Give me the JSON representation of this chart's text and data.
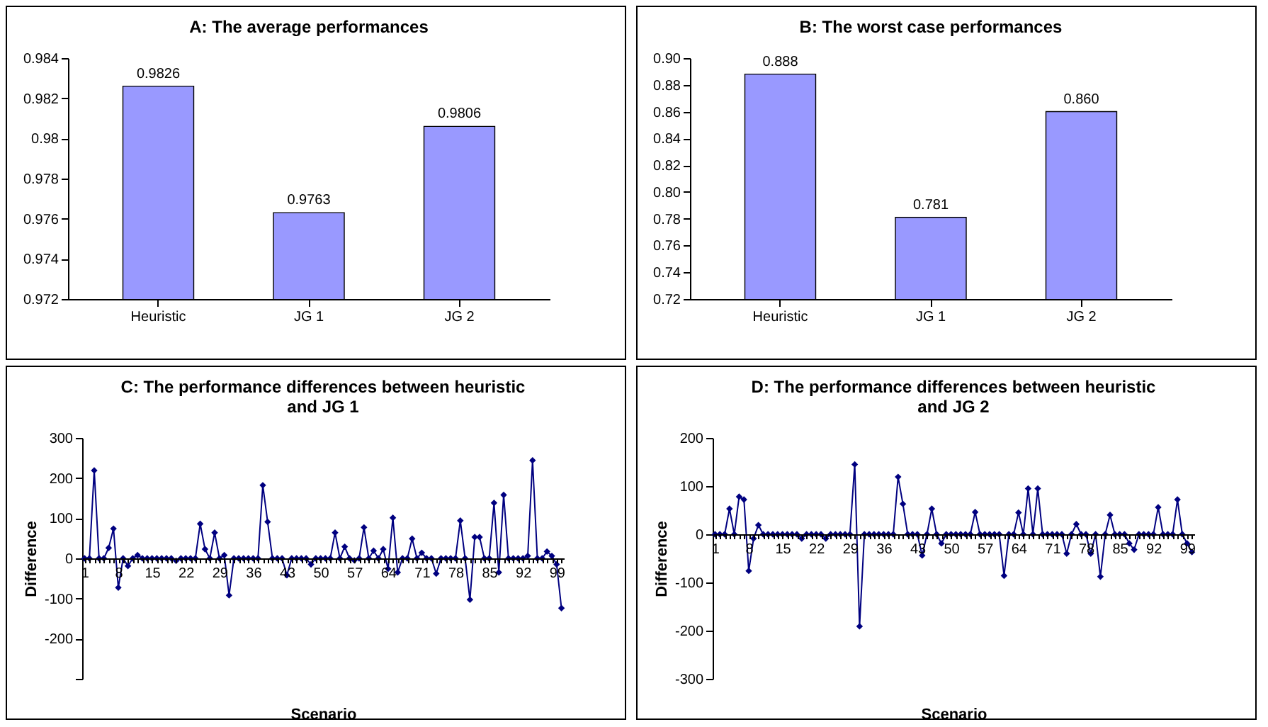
{
  "chart_data": [
    {
      "type": "bar",
      "title": "A: The average performances",
      "categories": [
        "Heuristic",
        "JG 1",
        "JG 2"
      ],
      "values": [
        0.9826,
        0.9763,
        0.9806
      ],
      "color": "#9999ff",
      "ylim": [
        0.972,
        0.984
      ],
      "yticks": [
        0.972,
        0.974,
        0.976,
        0.978,
        0.98,
        0.982,
        0.984
      ],
      "data_labels": true,
      "grid": false
    },
    {
      "type": "bar",
      "title": "B: The worst case performances",
      "categories": [
        "Heuristic",
        "JG 1",
        "JG 2"
      ],
      "values": [
        0.888,
        0.781,
        0.86
      ],
      "value_labels": [
        "0.888",
        "0.781",
        "0.860"
      ],
      "color": "#9999ff",
      "ylim": [
        0.72,
        0.9
      ],
      "yticks": [
        0.72,
        0.74,
        0.76,
        0.78,
        {
          "value": 0.8,
          "label": "0.80"
        },
        0.82,
        0.84,
        0.86,
        0.88,
        {
          "value": 0.9,
          "label": "0.90"
        }
      ],
      "grid": false
    },
    {
      "type": "line",
      "title": "C: The performance differences between heuristic and JG 1",
      "xlabel": "Scenario",
      "ylabel": "Difference",
      "marker": "diamond",
      "grid": false,
      "ylim": [
        -300,
        300
      ],
      "yticks": [
        {
          "value": -300,
          "label": null
        },
        -200,
        -100,
        0,
        100,
        200,
        300
      ],
      "categories": [
        "1",
        null,
        null,
        null,
        null,
        null,
        null,
        "8",
        null,
        null,
        null,
        null,
        null,
        null,
        "15",
        null,
        null,
        null,
        null,
        null,
        null,
        "22",
        null,
        null,
        null,
        null,
        null,
        null,
        "29",
        null,
        null,
        null,
        null,
        null,
        null,
        "36",
        null,
        null,
        null,
        null,
        null,
        null,
        "43",
        null,
        null,
        null,
        null,
        null,
        null,
        "50",
        null,
        null,
        null,
        null,
        null,
        null,
        "57",
        null,
        null,
        null,
        null,
        null,
        null,
        "64",
        null,
        null,
        null,
        null,
        null,
        null,
        "71",
        null,
        null,
        null,
        null,
        null,
        null,
        "78",
        null,
        null,
        null,
        null,
        null,
        null,
        "85",
        null,
        null,
        null,
        null,
        null,
        null,
        "92",
        null,
        null,
        null,
        null,
        null,
        null,
        "99",
        null
      ],
      "series": [
        {
          "color": "#000080",
          "values": [
            0,
            0,
            219,
            0,
            0,
            26,
            74,
            -73,
            0,
            -19,
            0,
            8,
            0,
            0,
            0,
            0,
            0,
            0,
            0,
            -6,
            0,
            0,
            0,
            0,
            86,
            23,
            0,
            64,
            0,
            8,
            -92,
            0,
            0,
            0,
            0,
            0,
            0,
            182,
            91,
            0,
            0,
            0,
            -42,
            0,
            0,
            0,
            0,
            -15,
            0,
            0,
            0,
            0,
            64,
            0,
            29,
            0,
            -5,
            0,
            77,
            0,
            19,
            0,
            23,
            -26,
            101,
            -35,
            0,
            0,
            49,
            0,
            14,
            0,
            0,
            -38,
            0,
            0,
            0,
            0,
            94,
            0,
            -103,
            53,
            53,
            0,
            0,
            138,
            -35,
            158,
            0,
            0,
            0,
            0,
            6,
            244,
            0,
            0,
            17,
            6,
            -15,
            -124
          ]
        }
      ]
    },
    {
      "type": "line",
      "title": "D: The performance differences between heuristic and JG 2",
      "xlabel": "Scenario",
      "ylabel": "Difference",
      "marker": "diamond",
      "grid": false,
      "ylim": [
        -300,
        200
      ],
      "yticks": [
        -300,
        -200,
        -100,
        0,
        100,
        200
      ],
      "categories": [
        "1",
        null,
        null,
        null,
        null,
        null,
        null,
        "8",
        null,
        null,
        null,
        null,
        null,
        null,
        "15",
        null,
        null,
        null,
        null,
        null,
        null,
        "22",
        null,
        null,
        null,
        null,
        null,
        null,
        "29",
        null,
        null,
        null,
        null,
        null,
        null,
        "36",
        null,
        null,
        null,
        null,
        null,
        null,
        "43",
        null,
        null,
        null,
        null,
        null,
        null,
        "50",
        null,
        null,
        null,
        null,
        null,
        null,
        "57",
        null,
        null,
        null,
        null,
        null,
        null,
        "64",
        null,
        null,
        null,
        null,
        null,
        null,
        "71",
        null,
        null,
        null,
        null,
        null,
        null,
        "78",
        null,
        null,
        null,
        null,
        null,
        null,
        "85",
        null,
        null,
        null,
        null,
        null,
        null,
        "92",
        null,
        null,
        null,
        null,
        null,
        null,
        "99",
        null
      ],
      "series": [
        {
          "color": "#000080",
          "values": [
            0,
            0,
            0,
            53,
            0,
            78,
            72,
            -76,
            -9,
            19,
            0,
            0,
            0,
            0,
            0,
            0,
            0,
            0,
            -9,
            0,
            0,
            0,
            0,
            -9,
            0,
            0,
            0,
            0,
            0,
            145,
            -191,
            0,
            0,
            0,
            0,
            0,
            0,
            0,
            119,
            63,
            0,
            0,
            0,
            -44,
            0,
            53,
            0,
            -19,
            0,
            0,
            0,
            0,
            0,
            0,
            46,
            0,
            0,
            0,
            0,
            0,
            -86,
            0,
            0,
            45,
            0,
            95,
            0,
            95,
            0,
            0,
            0,
            0,
            0,
            -40,
            0,
            21,
            0,
            0,
            -40,
            0,
            -88,
            0,
            40,
            0,
            0,
            0,
            -19,
            -32,
            0,
            0,
            0,
            0,
            56,
            0,
            0,
            0,
            72,
            0,
            -19,
            -37
          ]
        }
      ]
    }
  ]
}
